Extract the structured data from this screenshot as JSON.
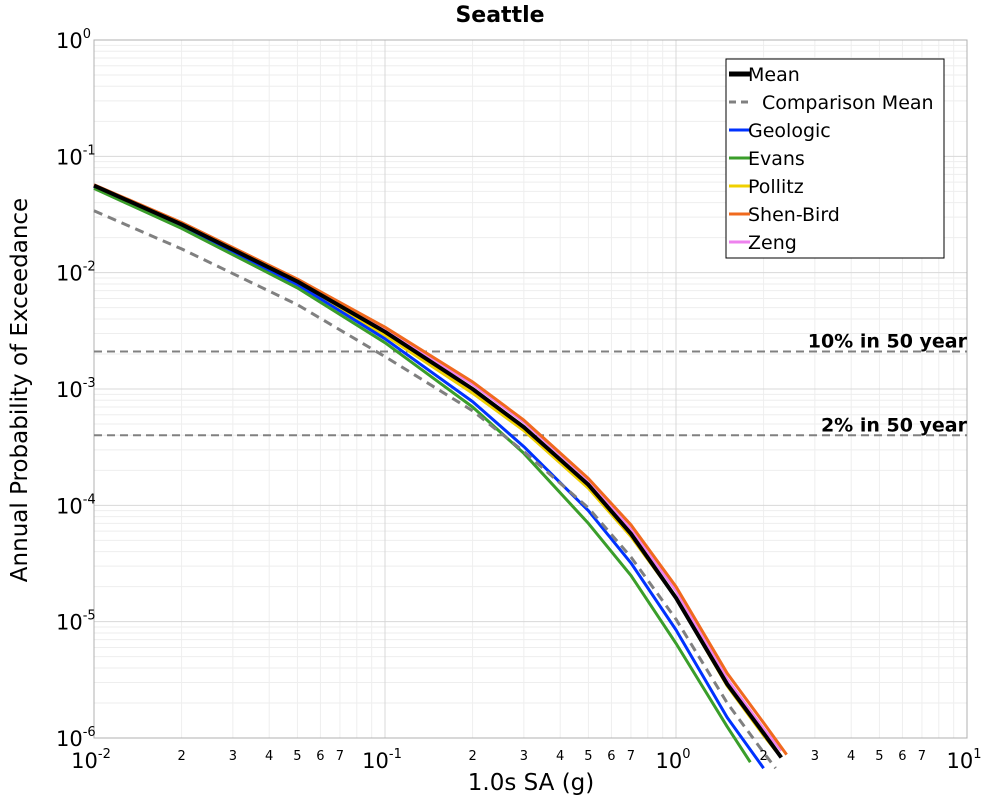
{
  "chart_data": {
    "type": "line",
    "title": "Seattle",
    "xlabel": "1.0s SA (g)",
    "ylabel": "Annual Probability of Exceedance",
    "xscale": "log",
    "yscale": "log",
    "xlim": [
      0.01,
      10
    ],
    "ylim": [
      1e-06,
      1
    ],
    "grid": true,
    "legend_position": "top-right",
    "x_major_ticks": [
      {
        "value": 0.01,
        "base": "10",
        "exp": "-2"
      },
      {
        "value": 0.1,
        "base": "10",
        "exp": "-1"
      },
      {
        "value": 1,
        "base": "10",
        "exp": "0"
      },
      {
        "value": 10,
        "base": "10",
        "exp": "1"
      }
    ],
    "y_major_ticks": [
      {
        "value": 1,
        "base": "10",
        "exp": "0"
      },
      {
        "value": 0.1,
        "base": "10",
        "exp": "-1"
      },
      {
        "value": 0.01,
        "base": "10",
        "exp": "-2"
      },
      {
        "value": 0.001,
        "base": "10",
        "exp": "-3"
      },
      {
        "value": 0.0001,
        "base": "10",
        "exp": "-4"
      },
      {
        "value": 1e-05,
        "base": "10",
        "exp": "-5"
      },
      {
        "value": 1e-06,
        "base": "10",
        "exp": "-6"
      }
    ],
    "x_minor_tick_labels": [
      "2",
      "3",
      "4",
      "5",
      "6",
      "7"
    ],
    "reference_lines": [
      {
        "label": "10% in 50 year",
        "y": 0.0021,
        "color": "#808080"
      },
      {
        "label": "2% in 50 year",
        "y": 0.0004,
        "color": "#808080"
      }
    ],
    "series": [
      {
        "name": "Zeng",
        "color": "#ee82ee",
        "dashed": false,
        "x": [
          0.01,
          0.02,
          0.05,
          0.1,
          0.2,
          0.3,
          0.5,
          0.7,
          1.0,
          1.5,
          2.0,
          2.3
        ],
        "y": [
          0.057,
          0.026,
          0.0085,
          0.0032,
          0.0011,
          0.00052,
          0.000165,
          6.2e-05,
          1.85e-05,
          3.2e-06,
          1.2e-06,
          7.8e-07
        ]
      },
      {
        "name": "Pollitz",
        "color": "#f0d000",
        "dashed": false,
        "x": [
          0.01,
          0.02,
          0.05,
          0.1,
          0.2,
          0.3,
          0.5,
          0.7,
          1.0,
          1.5,
          2.0,
          2.2
        ],
        "y": [
          0.055,
          0.025,
          0.008,
          0.0029,
          0.00092,
          0.00044,
          0.00014,
          5.4e-05,
          1.6e-05,
          2.8e-06,
          1.05e-06,
          7.8e-07
        ]
      },
      {
        "name": "Geologic",
        "color": "#0032ff",
        "dashed": false,
        "x": [
          0.01,
          0.02,
          0.05,
          0.1,
          0.2,
          0.3,
          0.5,
          0.7,
          1.0,
          1.5,
          2.0
        ],
        "y": [
          0.055,
          0.025,
          0.0079,
          0.0027,
          0.00078,
          0.00032,
          9e-05,
          3.2e-05,
          8.5e-06,
          1.5e-06,
          5.5e-07
        ]
      },
      {
        "name": "Evans",
        "color": "#3a9e2a",
        "dashed": false,
        "x": [
          0.01,
          0.02,
          0.05,
          0.1,
          0.2,
          0.3,
          0.5,
          0.7,
          1.0,
          1.5,
          1.8
        ],
        "y": [
          0.053,
          0.024,
          0.0074,
          0.0025,
          0.0007,
          0.00028,
          7e-05,
          2.5e-05,
          6.5e-06,
          1.25e-06,
          6.2e-07
        ]
      },
      {
        "name": "Comparison Mean",
        "color": "#808080",
        "dashed": true,
        "x": [
          0.01,
          0.02,
          0.05,
          0.1,
          0.2,
          0.3,
          0.5,
          0.7,
          1.0,
          1.5,
          2.0,
          2.2
        ],
        "y": [
          0.034,
          0.016,
          0.0053,
          0.0019,
          0.00065,
          0.00029,
          9.5e-05,
          3.6e-05,
          1.05e-05,
          2e-06,
          7.5e-07,
          5.5e-07
        ]
      },
      {
        "name": "Shen-Bird",
        "color": "#f06a1e",
        "dashed": false,
        "x": [
          0.01,
          0.02,
          0.05,
          0.1,
          0.2,
          0.3,
          0.5,
          0.7,
          1.0,
          1.5,
          2.0,
          2.4
        ],
        "y": [
          0.057,
          0.027,
          0.0088,
          0.0034,
          0.00115,
          0.00054,
          0.00017,
          6.8e-05,
          2e-05,
          3.6e-06,
          1.35e-06,
          7.2e-07
        ]
      },
      {
        "name": "Mean",
        "color": "#000000",
        "dashed": false,
        "x": [
          0.01,
          0.02,
          0.05,
          0.1,
          0.2,
          0.3,
          0.5,
          0.7,
          1.0,
          1.5,
          2.0,
          2.3
        ],
        "y": [
          0.056,
          0.026,
          0.0084,
          0.0031,
          0.001,
          0.00047,
          0.00015,
          5.7e-05,
          1.6e-05,
          2.9e-06,
          1.1e-06,
          6.8e-07
        ]
      }
    ],
    "legend": [
      {
        "name": "Mean",
        "color": "#000000",
        "dashed": false,
        "bold": true
      },
      {
        "name": "Comparison Mean",
        "color": "#808080",
        "dashed": true,
        "bold": false
      },
      {
        "name": "Geologic",
        "color": "#0032ff",
        "dashed": false,
        "bold": false
      },
      {
        "name": "Evans",
        "color": "#3a9e2a",
        "dashed": false,
        "bold": false
      },
      {
        "name": "Pollitz",
        "color": "#f0d000",
        "dashed": false,
        "bold": false
      },
      {
        "name": "Shen-Bird",
        "color": "#f06a1e",
        "dashed": false,
        "bold": false
      },
      {
        "name": "Zeng",
        "color": "#ee82ee",
        "dashed": false,
        "bold": false
      }
    ]
  }
}
